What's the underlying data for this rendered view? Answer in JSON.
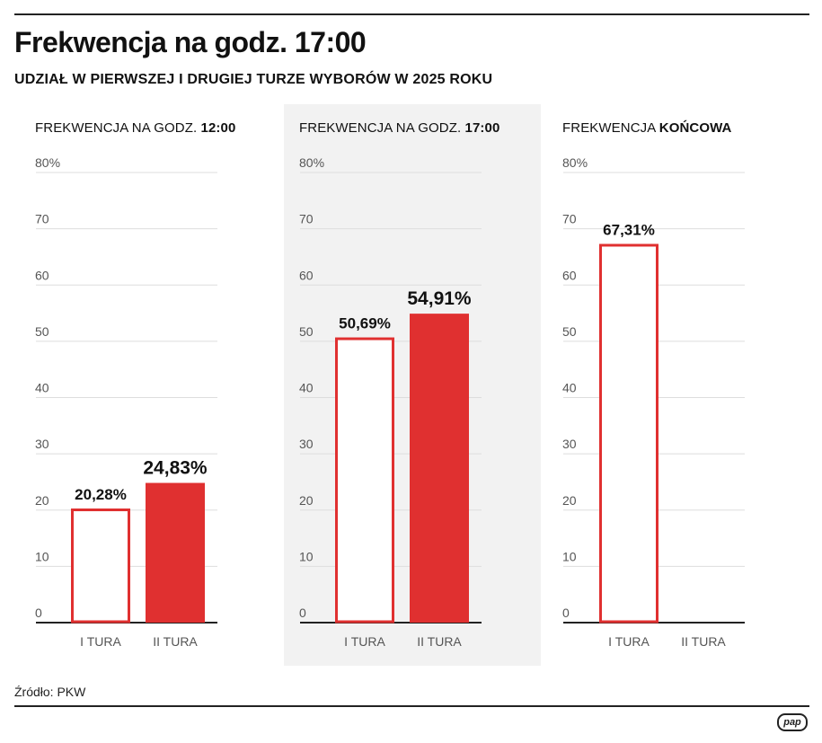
{
  "header": {
    "title": "Frekwencja na godz. 17:00",
    "subtitle": "UDZIAŁ W PIERWSZEJ I DRUGIEJ TURZE WYBORÓW W 2025 ROKU"
  },
  "footer": {
    "source": "Źródło: PKW",
    "logo": "pap"
  },
  "colors": {
    "accent": "#e03030",
    "gridline": "#dddddd",
    "axis": "#222222",
    "tick_label": "#555555",
    "highlight_panel": "#f2f2f2"
  },
  "chart_data": [
    {
      "type": "bar",
      "title_prefix": "FREKWENCJA NA GODZ. ",
      "title_bold": "12:00",
      "categories": [
        "I TURA",
        "II TURA"
      ],
      "values": [
        20.28,
        24.83
      ],
      "value_labels": [
        "20,28%",
        "24,83%"
      ],
      "bar_styles": [
        "outline",
        "filled"
      ],
      "ylim": [
        0,
        80
      ],
      "yticks": [
        "0",
        "10",
        "20",
        "30",
        "40",
        "50",
        "60",
        "70",
        "80%"
      ],
      "grid": true,
      "highlighted": false
    },
    {
      "type": "bar",
      "title_prefix": "FREKWENCJA NA GODZ. ",
      "title_bold": "17:00",
      "categories": [
        "I TURA",
        "II TURA"
      ],
      "values": [
        50.69,
        54.91
      ],
      "value_labels": [
        "50,69%",
        "54,91%"
      ],
      "bar_styles": [
        "outline",
        "filled"
      ],
      "ylim": [
        0,
        80
      ],
      "yticks": [
        "0",
        "10",
        "20",
        "30",
        "40",
        "50",
        "60",
        "70",
        "80%"
      ],
      "grid": true,
      "highlighted": true
    },
    {
      "type": "bar",
      "title_prefix": "FREKWENCJA ",
      "title_bold": "KOŃCOWA",
      "categories": [
        "I TURA",
        "II TURA"
      ],
      "values": [
        67.31,
        null
      ],
      "value_labels": [
        "67,31%",
        ""
      ],
      "bar_styles": [
        "outline",
        "filled"
      ],
      "ylim": [
        0,
        80
      ],
      "yticks": [
        "0",
        "10",
        "20",
        "30",
        "40",
        "50",
        "60",
        "70",
        "80%"
      ],
      "grid": true,
      "highlighted": false
    }
  ]
}
